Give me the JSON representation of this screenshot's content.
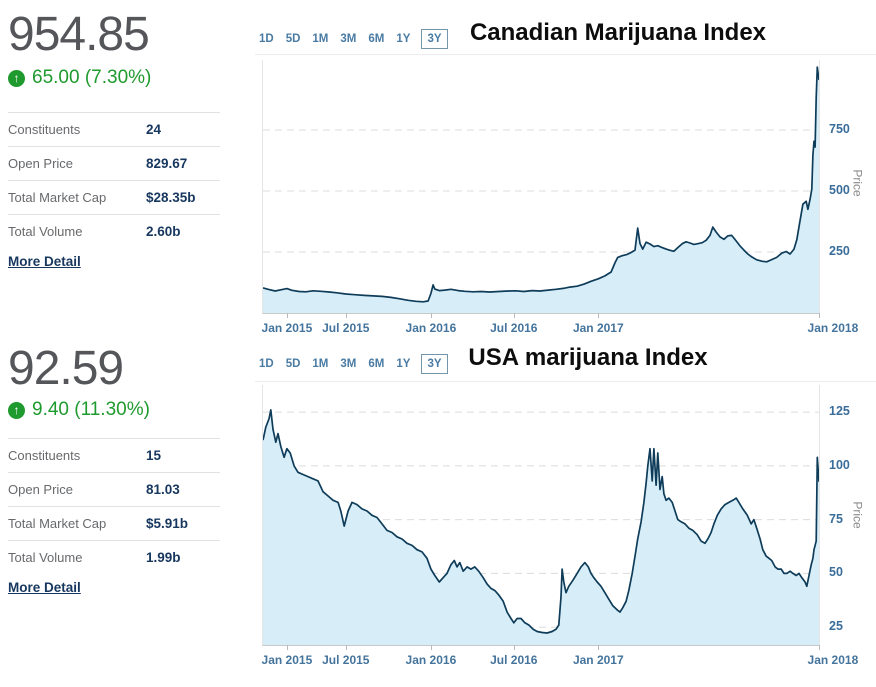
{
  "colors": {
    "accent_green": "#1f9a2e",
    "value_navy": "#17375e",
    "line": "#0e3c59",
    "fill": "#d7eef9",
    "axis_text": "#44749c",
    "muted_text": "#67696c",
    "big_number_gray": "#55565a"
  },
  "left_panels": [
    {
      "price": "954.85",
      "arrow_icon": "↑",
      "change": "65.00 (7.30%)",
      "rows": [
        {
          "label": "Constituents",
          "value": "24"
        },
        {
          "label": "Open Price",
          "value": "829.67"
        },
        {
          "label": "Total Market Cap",
          "value": "$28.35b"
        },
        {
          "label": "Total Volume",
          "value": "2.60b"
        }
      ],
      "more_detail": "More Detail"
    },
    {
      "price": "92.59",
      "arrow_icon": "↑",
      "change": "9.40 (11.30%)",
      "rows": [
        {
          "label": "Constituents",
          "value": "15"
        },
        {
          "label": "Open Price",
          "value": "81.03"
        },
        {
          "label": "Total Market Cap",
          "value": "$5.91b"
        },
        {
          "label": "Total Volume",
          "value": "1.99b"
        }
      ],
      "more_detail": "More Detail"
    }
  ],
  "chart_data": [
    {
      "type": "area",
      "title": "Canadian Marijuana Index",
      "ranges": [
        "1D",
        "5D",
        "1M",
        "3M",
        "6M",
        "1Y",
        "3Y"
      ],
      "selected_range": "3Y",
      "ylabel": "Price",
      "last_price": 954.85,
      "ymin": 0,
      "ymax": 1037,
      "yticks": [
        250,
        500,
        750
      ],
      "grid": "dashed",
      "legend": "none",
      "xticks": [
        {
          "label": "Jan 2015",
          "f": 0.043
        },
        {
          "label": "Jul 2015",
          "f": 0.149
        },
        {
          "label": "Jan 2016",
          "f": 0.302
        },
        {
          "label": "Jul 2016",
          "f": 0.451
        },
        {
          "label": "Jan 2017",
          "f": 0.603
        },
        {
          "label": "Jan 2018",
          "f": 1.0,
          "label_f": 1.025
        }
      ],
      "points": [
        [
          0,
          103
        ],
        [
          0.011,
          96
        ],
        [
          0.022,
          90
        ],
        [
          0.032,
          95
        ],
        [
          0.043,
          100
        ],
        [
          0.052,
          93
        ],
        [
          0.065,
          88
        ],
        [
          0.077,
          87
        ],
        [
          0.09,
          91
        ],
        [
          0.104,
          89
        ],
        [
          0.119,
          86
        ],
        [
          0.133,
          83
        ],
        [
          0.149,
          78
        ],
        [
          0.165,
          75
        ],
        [
          0.182,
          72
        ],
        [
          0.198,
          70
        ],
        [
          0.214,
          68
        ],
        [
          0.23,
          64
        ],
        [
          0.246,
          58
        ],
        [
          0.261,
          52
        ],
        [
          0.275,
          48
        ],
        [
          0.288,
          46
        ],
        [
          0.297,
          49
        ],
        [
          0.302,
          80
        ],
        [
          0.306,
          115
        ],
        [
          0.309,
          98
        ],
        [
          0.317,
          92
        ],
        [
          0.327,
          94
        ],
        [
          0.338,
          97
        ],
        [
          0.351,
          92
        ],
        [
          0.363,
          89
        ],
        [
          0.378,
          87
        ],
        [
          0.392,
          88
        ],
        [
          0.408,
          86
        ],
        [
          0.424,
          88
        ],
        [
          0.441,
          90
        ],
        [
          0.455,
          91
        ],
        [
          0.469,
          88
        ],
        [
          0.484,
          92
        ],
        [
          0.498,
          90
        ],
        [
          0.513,
          94
        ],
        [
          0.527,
          97
        ],
        [
          0.54,
          101
        ],
        [
          0.552,
          106
        ],
        [
          0.565,
          110
        ],
        [
          0.577,
          118
        ],
        [
          0.59,
          130
        ],
        [
          0.603,
          140
        ],
        [
          0.615,
          152
        ],
        [
          0.626,
          168
        ],
        [
          0.633,
          205
        ],
        [
          0.638,
          228
        ],
        [
          0.646,
          235
        ],
        [
          0.655,
          240
        ],
        [
          0.662,
          248
        ],
        [
          0.669,
          258
        ],
        [
          0.674,
          348
        ],
        [
          0.678,
          285
        ],
        [
          0.683,
          262
        ],
        [
          0.689,
          290
        ],
        [
          0.696,
          283
        ],
        [
          0.703,
          272
        ],
        [
          0.71,
          276
        ],
        [
          0.718,
          268
        ],
        [
          0.725,
          262
        ],
        [
          0.732,
          257
        ],
        [
          0.739,
          253
        ],
        [
          0.746,
          268
        ],
        [
          0.754,
          284
        ],
        [
          0.761,
          292
        ],
        [
          0.768,
          287
        ],
        [
          0.775,
          281
        ],
        [
          0.782,
          284
        ],
        [
          0.79,
          288
        ],
        [
          0.797,
          298
        ],
        [
          0.804,
          318
        ],
        [
          0.809,
          352
        ],
        [
          0.815,
          332
        ],
        [
          0.822,
          312
        ],
        [
          0.829,
          302
        ],
        [
          0.836,
          316
        ],
        [
          0.843,
          318
        ],
        [
          0.851,
          295
        ],
        [
          0.858,
          275
        ],
        [
          0.865,
          258
        ],
        [
          0.872,
          242
        ],
        [
          0.879,
          230
        ],
        [
          0.888,
          218
        ],
        [
          0.898,
          212
        ],
        [
          0.906,
          210
        ],
        [
          0.915,
          219
        ],
        [
          0.924,
          228
        ],
        [
          0.933,
          245
        ],
        [
          0.941,
          252
        ],
        [
          0.948,
          242
        ],
        [
          0.955,
          262
        ],
        [
          0.96,
          300
        ],
        [
          0.966,
          380
        ],
        [
          0.971,
          446
        ],
        [
          0.977,
          458
        ],
        [
          0.98,
          425
        ],
        [
          0.984,
          467
        ],
        [
          0.987,
          508
        ],
        [
          0.989,
          646
        ],
        [
          0.991,
          704
        ],
        [
          0.993,
          680
        ],
        [
          0.995,
          883
        ],
        [
          0.997,
          1008
        ],
        [
          1,
          954.85
        ]
      ]
    },
    {
      "type": "area",
      "title": "USA marijuana Index",
      "ranges": [
        "1D",
        "5D",
        "1M",
        "3M",
        "6M",
        "1Y",
        "3Y"
      ],
      "selected_range": "3Y",
      "ylabel": "Price",
      "last_price": 92.59,
      "ymin": 16.7,
      "ymax": 137.6,
      "yticks": [
        25,
        50,
        75,
        100,
        125
      ],
      "grid": "dashed",
      "legend": "none",
      "xticks": [
        {
          "label": "Jan 2015",
          "f": 0.043
        },
        {
          "label": "Jul 2015",
          "f": 0.149
        },
        {
          "label": "Jan 2016",
          "f": 0.302
        },
        {
          "label": "Jul 2016",
          "f": 0.451
        },
        {
          "label": "Jan 2017",
          "f": 0.603
        },
        {
          "label": "Jan 2018",
          "f": 1.0,
          "label_f": 1.025
        }
      ],
      "points": [
        [
          0,
          112
        ],
        [
          0.005,
          118
        ],
        [
          0.011,
          122
        ],
        [
          0.014,
          126
        ],
        [
          0.018,
          117
        ],
        [
          0.023,
          111
        ],
        [
          0.027,
          115
        ],
        [
          0.032,
          109
        ],
        [
          0.038,
          104
        ],
        [
          0.043,
          108
        ],
        [
          0.049,
          106
        ],
        [
          0.056,
          100
        ],
        [
          0.063,
          97
        ],
        [
          0.072,
          96
        ],
        [
          0.081,
          95
        ],
        [
          0.09,
          94
        ],
        [
          0.099,
          93
        ],
        [
          0.108,
          88
        ],
        [
          0.117,
          86
        ],
        [
          0.126,
          84
        ],
        [
          0.135,
          83
        ],
        [
          0.14,
          79
        ],
        [
          0.146,
          72
        ],
        [
          0.153,
          79
        ],
        [
          0.16,
          83
        ],
        [
          0.169,
          82
        ],
        [
          0.178,
          80
        ],
        [
          0.187,
          79
        ],
        [
          0.196,
          77
        ],
        [
          0.205,
          76
        ],
        [
          0.214,
          73
        ],
        [
          0.223,
          70
        ],
        [
          0.232,
          69
        ],
        [
          0.241,
          67
        ],
        [
          0.25,
          66
        ],
        [
          0.259,
          64
        ],
        [
          0.268,
          63
        ],
        [
          0.277,
          61
        ],
        [
          0.286,
          60
        ],
        [
          0.295,
          57
        ],
        [
          0.302,
          52
        ],
        [
          0.309,
          49
        ],
        [
          0.317,
          46
        ],
        [
          0.324,
          48
        ],
        [
          0.331,
          50
        ],
        [
          0.338,
          54
        ],
        [
          0.344,
          56
        ],
        [
          0.349,
          53
        ],
        [
          0.354,
          55
        ],
        [
          0.36,
          51
        ],
        [
          0.367,
          53
        ],
        [
          0.374,
          52
        ],
        [
          0.381,
          53
        ],
        [
          0.388,
          51
        ],
        [
          0.396,
          48
        ],
        [
          0.403,
          45
        ],
        [
          0.41,
          43
        ],
        [
          0.417,
          42
        ],
        [
          0.424,
          40
        ],
        [
          0.432,
          37
        ],
        [
          0.439,
          32
        ],
        [
          0.446,
          29
        ],
        [
          0.451,
          27
        ],
        [
          0.457,
          29
        ],
        [
          0.464,
          29
        ],
        [
          0.471,
          27
        ],
        [
          0.478,
          26
        ],
        [
          0.486,
          24
        ],
        [
          0.493,
          23
        ],
        [
          0.502,
          22.5
        ],
        [
          0.511,
          22.3
        ],
        [
          0.52,
          23
        ],
        [
          0.527,
          24
        ],
        [
          0.532,
          26
        ],
        [
          0.536,
          39
        ],
        [
          0.538,
          52
        ],
        [
          0.541,
          46
        ],
        [
          0.545,
          41
        ],
        [
          0.55,
          44
        ],
        [
          0.558,
          47
        ],
        [
          0.565,
          50
        ],
        [
          0.572,
          53
        ],
        [
          0.579,
          55
        ],
        [
          0.585,
          53
        ],
        [
          0.59,
          50
        ],
        [
          0.595,
          48
        ],
        [
          0.601,
          46
        ],
        [
          0.608,
          44
        ],
        [
          0.615,
          41
        ],
        [
          0.622,
          38
        ],
        [
          0.629,
          35
        ],
        [
          0.637,
          33
        ],
        [
          0.642,
          32
        ],
        [
          0.647,
          34
        ],
        [
          0.653,
          37
        ],
        [
          0.658,
          42
        ],
        [
          0.664,
          50
        ],
        [
          0.669,
          58
        ],
        [
          0.674,
          66
        ],
        [
          0.68,
          74
        ],
        [
          0.685,
          83
        ],
        [
          0.689,
          92
        ],
        [
          0.692,
          100
        ],
        [
          0.696,
          108
        ],
        [
          0.7,
          93
        ],
        [
          0.703,
          108
        ],
        [
          0.707,
          91
        ],
        [
          0.71,
          106
        ],
        [
          0.714,
          89
        ],
        [
          0.718,
          95
        ],
        [
          0.721,
          87
        ],
        [
          0.725,
          84
        ],
        [
          0.73,
          85
        ],
        [
          0.736,
          83
        ],
        [
          0.741,
          79
        ],
        [
          0.746,
          75
        ],
        [
          0.752,
          74
        ],
        [
          0.759,
          73
        ],
        [
          0.766,
          71
        ],
        [
          0.773,
          70
        ],
        [
          0.781,
          68
        ],
        [
          0.788,
          65
        ],
        [
          0.795,
          64
        ],
        [
          0.8,
          66
        ],
        [
          0.806,
          69
        ],
        [
          0.811,
          73
        ],
        [
          0.817,
          77
        ],
        [
          0.824,
          80
        ],
        [
          0.831,
          82
        ],
        [
          0.838,
          83
        ],
        [
          0.845,
          84
        ],
        [
          0.851,
          85
        ],
        [
          0.856,
          83
        ],
        [
          0.863,
          80
        ],
        [
          0.871,
          77
        ],
        [
          0.878,
          73
        ],
        [
          0.883,
          75
        ],
        [
          0.888,
          71
        ],
        [
          0.894,
          66
        ],
        [
          0.899,
          61
        ],
        [
          0.905,
          58
        ],
        [
          0.91,
          57
        ],
        [
          0.915,
          56
        ],
        [
          0.921,
          53
        ],
        [
          0.926,
          52
        ],
        [
          0.932,
          52
        ],
        [
          0.937,
          50
        ],
        [
          0.942,
          50
        ],
        [
          0.948,
          51
        ],
        [
          0.953,
          50
        ],
        [
          0.959,
          49
        ],
        [
          0.964,
          50
        ],
        [
          0.969,
          48
        ],
        [
          0.975,
          46
        ],
        [
          0.978,
          44
        ],
        [
          0.982,
          49
        ],
        [
          0.986,
          54
        ],
        [
          0.989,
          57
        ],
        [
          0.991,
          61
        ],
        [
          0.993,
          63
        ],
        [
          0.995,
          65
        ],
        [
          0.997,
          104
        ],
        [
          1,
          92.59
        ]
      ]
    }
  ]
}
